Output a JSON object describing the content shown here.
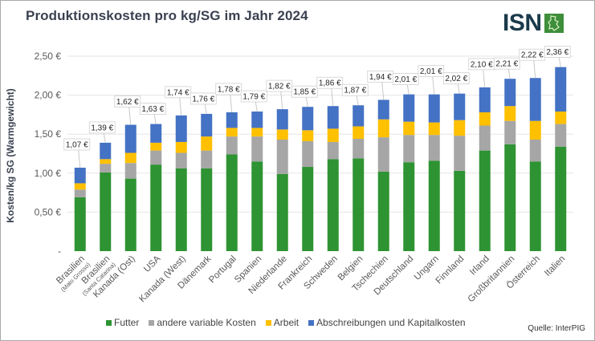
{
  "header": {
    "title": "Produktionskosten pro kg/SG im Jahr 2024",
    "logo_text": "ISN",
    "logo_icon": "germany-map-icon"
  },
  "footer": {
    "source": "Quelle: InterPIG"
  },
  "colors": {
    "Futter": "#2e9332",
    "andere variable Kosten": "#a6a6a6",
    "Arbeit": "#ffc000",
    "Abschreibungen und Kapitalkosten": "#4472c4",
    "gridline": "#e6e6e6",
    "title": "#3a4150"
  },
  "chart_data": {
    "type": "bar",
    "stacked": true,
    "title": "Produktionskosten pro kg/SG im Jahr 2024",
    "xlabel": "",
    "ylabel": "Kosten/kg SG (Warmgewicht)",
    "ylim": [
      0,
      2.5
    ],
    "yticks": [
      0,
      0.5,
      1.0,
      1.5,
      2.0,
      2.5
    ],
    "ytick_labels": [
      "-",
      "0,50 €",
      "1,00 €",
      "1,50 €",
      "2,00 €",
      "2,50 €"
    ],
    "grid": true,
    "legend_position": "bottom",
    "categories": [
      {
        "line1": "Brasilien",
        "line2": "(Mato Grosso)"
      },
      {
        "line1": "Brasilien",
        "line2": "(Santa Catarina)"
      },
      {
        "line1": "Kanada (Ost)",
        "line2": ""
      },
      {
        "line1": "USA",
        "line2": ""
      },
      {
        "line1": "Kanada (West)",
        "line2": ""
      },
      {
        "line1": "Dänemark",
        "line2": ""
      },
      {
        "line1": "Portugal",
        "line2": ""
      },
      {
        "line1": "Spanien",
        "line2": ""
      },
      {
        "line1": "Niederlande",
        "line2": ""
      },
      {
        "line1": "Frankreich",
        "line2": ""
      },
      {
        "line1": "Schweden",
        "line2": ""
      },
      {
        "line1": "Belgien",
        "line2": ""
      },
      {
        "line1": "Tschechien",
        "line2": ""
      },
      {
        "line1": "Deutschland",
        "line2": ""
      },
      {
        "line1": "Ungarn",
        "line2": ""
      },
      {
        "line1": "Finnland",
        "line2": ""
      },
      {
        "line1": "Irland",
        "line2": ""
      },
      {
        "line1": "Großbritannien",
        "line2": ""
      },
      {
        "line1": "Österreich",
        "line2": ""
      },
      {
        "line1": "Italien",
        "line2": ""
      }
    ],
    "series": [
      {
        "name": "Futter",
        "values": [
          0.69,
          1.01,
          0.93,
          1.11,
          1.06,
          1.06,
          1.24,
          1.15,
          0.99,
          1.08,
          1.18,
          1.19,
          1.02,
          1.14,
          1.16,
          1.03,
          1.29,
          1.37,
          1.15,
          1.34
        ]
      },
      {
        "name": "andere variable Kosten",
        "values": [
          0.1,
          0.11,
          0.2,
          0.18,
          0.2,
          0.23,
          0.23,
          0.32,
          0.44,
          0.33,
          0.22,
          0.25,
          0.44,
          0.35,
          0.33,
          0.45,
          0.32,
          0.3,
          0.28,
          0.29
        ]
      },
      {
        "name": "Arbeit",
        "values": [
          0.08,
          0.06,
          0.13,
          0.1,
          0.14,
          0.18,
          0.11,
          0.11,
          0.13,
          0.14,
          0.17,
          0.16,
          0.23,
          0.17,
          0.16,
          0.2,
          0.17,
          0.19,
          0.24,
          0.16
        ]
      },
      {
        "name": "Abschreibungen und Kapitalkosten",
        "values": [
          0.2,
          0.21,
          0.36,
          0.24,
          0.34,
          0.29,
          0.2,
          0.21,
          0.26,
          0.3,
          0.29,
          0.27,
          0.25,
          0.35,
          0.36,
          0.34,
          0.32,
          0.35,
          0.55,
          0.57
        ]
      }
    ],
    "totals": [
      1.07,
      1.39,
      1.62,
      1.63,
      1.74,
      1.76,
      1.78,
      1.79,
      1.82,
      1.85,
      1.86,
      1.87,
      1.94,
      2.01,
      2.01,
      2.02,
      2.1,
      2.21,
      2.22,
      2.36
    ],
    "total_labels": [
      "1,07 €",
      "1,39 €",
      "1,62 €",
      "1,63 €",
      "1,74 €",
      "1,76 €",
      "1,78 €",
      "1,79 €",
      "1,82 €",
      "1,85 €",
      "1,86 €",
      "1,87 €",
      "1,94 €",
      "2,01 €",
      "2,01 €",
      "2,02 €",
      "2,10 €",
      "2,21 €",
      "2,22 €",
      "2,36 €"
    ]
  }
}
